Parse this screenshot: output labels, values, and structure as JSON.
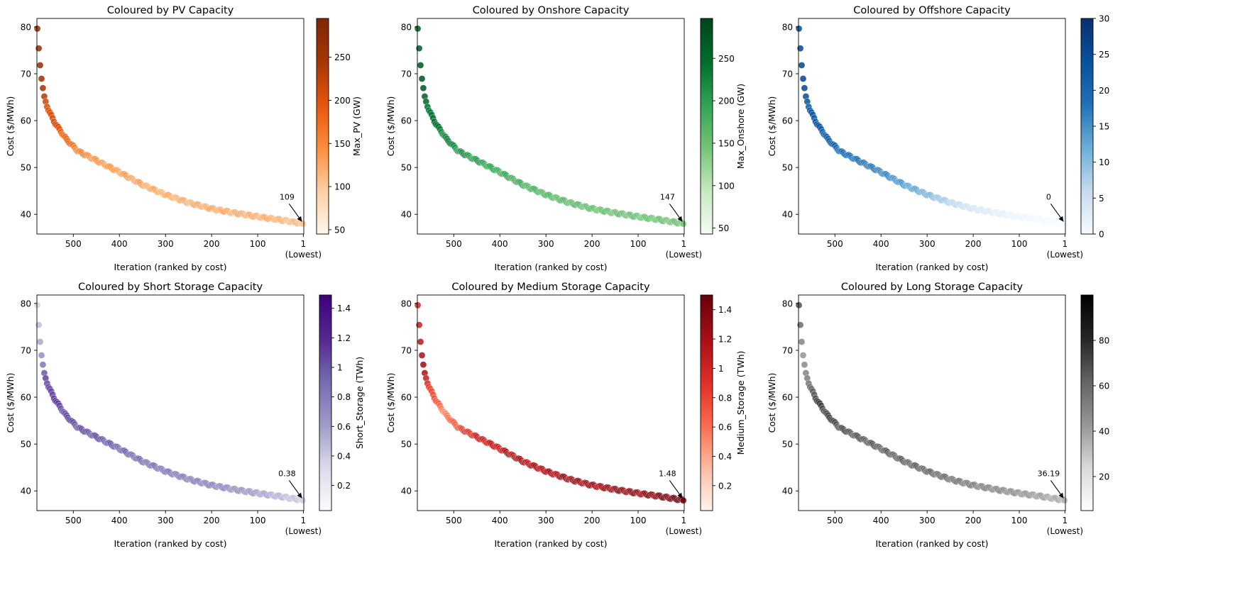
{
  "figure": {
    "xlabel": "Iteration (ranked by cost)",
    "ylabel": "Cost ($/MWh)",
    "x_tick_labels": [
      "500",
      "400",
      "300",
      "200",
      "100",
      "1"
    ],
    "lowest_label": "(Lowest)"
  },
  "chart_data": [
    {
      "type": "scatter",
      "title": "Coloured by PV Capacity",
      "xlabel": "Iteration (ranked by cost)",
      "ylabel": "Cost ($/MWh)",
      "colorbar_label": "Max_PV (GW)",
      "colormap": "Oranges",
      "color_stops": [
        "#fff5eb",
        "#fdd0a2",
        "#fd8d3c",
        "#e6550d",
        "#a63603",
        "#7f2704"
      ],
      "color_range": [
        45,
        295
      ],
      "colorbar_ticks": [
        50,
        100,
        150,
        200,
        250
      ],
      "x_ticks": [
        500,
        400,
        300,
        200,
        100,
        1
      ],
      "xlim": [
        579,
        0
      ],
      "y_ticks": [
        40,
        50,
        60,
        70,
        80
      ],
      "ylim": [
        35.8,
        81.8
      ],
      "annotation": {
        "text": "109",
        "x": 1,
        "y": 38.0
      },
      "cost_curve": [
        [
          1,
          38.0
        ],
        [
          50,
          38.8
        ],
        [
          100,
          39.5
        ],
        [
          150,
          40.3
        ],
        [
          200,
          41.2
        ],
        [
          250,
          42.5
        ],
        [
          300,
          44.2
        ],
        [
          350,
          46.3
        ],
        [
          400,
          49.0
        ],
        [
          450,
          51.5
        ],
        [
          490,
          53.5
        ],
        [
          515,
          56.0
        ],
        [
          540,
          59.5
        ],
        [
          555,
          62.5
        ],
        [
          563,
          65.0
        ],
        [
          568,
          68.0
        ],
        [
          572,
          72.0
        ],
        [
          575,
          75.5
        ],
        [
          577,
          78.0
        ],
        [
          578,
          79.5
        ]
      ],
      "color_curve": [
        [
          1,
          109
        ],
        [
          100,
          120
        ],
        [
          200,
          122
        ],
        [
          300,
          118
        ],
        [
          400,
          130
        ],
        [
          450,
          135
        ],
        [
          500,
          160
        ],
        [
          530,
          195
        ],
        [
          560,
          220
        ],
        [
          575,
          270
        ],
        [
          578,
          280
        ]
      ]
    },
    {
      "type": "scatter",
      "title": "Coloured by Onshore Capacity",
      "xlabel": "Iteration (ranked by cost)",
      "ylabel": "Cost ($/MWh)",
      "colorbar_label": "Max_Onshore (GW)",
      "colormap": "Greens",
      "color_stops": [
        "#f7fcf5",
        "#c7e9c0",
        "#74c476",
        "#31a354",
        "#006d2c",
        "#00441b"
      ],
      "color_range": [
        43,
        297
      ],
      "colorbar_ticks": [
        50,
        100,
        150,
        200,
        250
      ],
      "x_ticks": [
        500,
        400,
        300,
        200,
        100,
        1
      ],
      "xlim": [
        579,
        0
      ],
      "y_ticks": [
        40,
        50,
        60,
        70,
        80
      ],
      "ylim": [
        35.8,
        81.8
      ],
      "annotation": {
        "text": "147",
        "x": 1,
        "y": 38.0
      },
      "cost_curve": [
        [
          1,
          38.0
        ],
        [
          50,
          38.8
        ],
        [
          100,
          39.5
        ],
        [
          150,
          40.3
        ],
        [
          200,
          41.2
        ],
        [
          250,
          42.5
        ],
        [
          300,
          44.2
        ],
        [
          350,
          46.3
        ],
        [
          400,
          49.0
        ],
        [
          450,
          51.5
        ],
        [
          490,
          53.5
        ],
        [
          515,
          56.0
        ],
        [
          540,
          59.5
        ],
        [
          555,
          62.5
        ],
        [
          563,
          65.0
        ],
        [
          568,
          68.0
        ],
        [
          572,
          72.0
        ],
        [
          575,
          75.5
        ],
        [
          577,
          78.0
        ],
        [
          578,
          79.5
        ]
      ],
      "color_curve": [
        [
          1,
          147
        ],
        [
          100,
          150
        ],
        [
          200,
          155
        ],
        [
          300,
          165
        ],
        [
          400,
          185
        ],
        [
          450,
          200
        ],
        [
          500,
          215
        ],
        [
          530,
          230
        ],
        [
          560,
          260
        ],
        [
          578,
          270
        ]
      ]
    },
    {
      "type": "scatter",
      "title": "Coloured by Offshore Capacity",
      "xlabel": "Iteration (ranked by cost)",
      "ylabel": "Cost ($/MWh)",
      "colorbar_label": "",
      "colormap": "Blues",
      "color_stops": [
        "#f7fbff",
        "#c6dbef",
        "#6baed6",
        "#2171b5",
        "#08519c",
        "#08306b"
      ],
      "color_range": [
        0,
        30
      ],
      "colorbar_ticks": [
        0,
        5,
        10,
        15,
        20,
        25,
        30
      ],
      "x_ticks": [
        500,
        400,
        300,
        200,
        100,
        1
      ],
      "xlim": [
        579,
        0
      ],
      "y_ticks": [
        40,
        50,
        60,
        70,
        80
      ],
      "ylim": [
        35.8,
        81.8
      ],
      "annotation": {
        "text": "0",
        "x": 1,
        "y": 38.0
      },
      "cost_curve": [
        [
          1,
          38.0
        ],
        [
          50,
          38.8
        ],
        [
          100,
          39.5
        ],
        [
          150,
          40.3
        ],
        [
          200,
          41.2
        ],
        [
          250,
          42.5
        ],
        [
          300,
          44.2
        ],
        [
          350,
          46.3
        ],
        [
          400,
          49.0
        ],
        [
          450,
          51.5
        ],
        [
          490,
          53.5
        ],
        [
          515,
          56.0
        ],
        [
          540,
          59.5
        ],
        [
          555,
          62.5
        ],
        [
          563,
          65.0
        ],
        [
          568,
          68.0
        ],
        [
          572,
          72.0
        ],
        [
          575,
          75.5
        ],
        [
          577,
          78.0
        ],
        [
          578,
          79.5
        ]
      ],
      "color_curve": [
        [
          1,
          0
        ],
        [
          100,
          1
        ],
        [
          200,
          4
        ],
        [
          250,
          7
        ],
        [
          300,
          11
        ],
        [
          400,
          16
        ],
        [
          450,
          18
        ],
        [
          500,
          20
        ],
        [
          530,
          22
        ],
        [
          560,
          24
        ],
        [
          578,
          26
        ]
      ]
    },
    {
      "type": "scatter",
      "title": "Coloured by Short Storage Capacity",
      "xlabel": "Iteration (ranked by cost)",
      "ylabel": "Cost ($/MWh)",
      "colorbar_label": "Short_Storage (TWh)",
      "colormap": "Purples",
      "color_stops": [
        "#fcfbfd",
        "#dadaeb",
        "#9e9ac8",
        "#756bb1",
        "#54278f",
        "#3f007d"
      ],
      "color_range": [
        0.03,
        1.49
      ],
      "colorbar_ticks": [
        0.2,
        0.4,
        0.6,
        0.8,
        1.0,
        1.2,
        1.4
      ],
      "x_ticks": [
        500,
        400,
        300,
        200,
        100,
        1
      ],
      "xlim": [
        579,
        0
      ],
      "y_ticks": [
        40,
        50,
        60,
        70,
        80
      ],
      "ylim": [
        35.8,
        81.8
      ],
      "annotation": {
        "text": "0.38",
        "x": 1,
        "y": 38.0
      },
      "cost_curve": [
        [
          1,
          38.0
        ],
        [
          50,
          38.8
        ],
        [
          100,
          39.5
        ],
        [
          150,
          40.3
        ],
        [
          200,
          41.2
        ],
        [
          250,
          42.5
        ],
        [
          300,
          44.2
        ],
        [
          350,
          46.3
        ],
        [
          400,
          49.0
        ],
        [
          450,
          51.5
        ],
        [
          490,
          53.5
        ],
        [
          515,
          56.0
        ],
        [
          540,
          59.5
        ],
        [
          555,
          62.5
        ],
        [
          563,
          65.0
        ],
        [
          568,
          68.0
        ],
        [
          572,
          72.0
        ],
        [
          575,
          75.5
        ],
        [
          577,
          78.0
        ],
        [
          578,
          79.5
        ]
      ],
      "color_curve": [
        [
          1,
          0.38
        ],
        [
          100,
          0.6
        ],
        [
          200,
          0.75
        ],
        [
          300,
          0.8
        ],
        [
          400,
          0.9
        ],
        [
          450,
          1.0
        ],
        [
          500,
          1.0
        ],
        [
          530,
          1.05
        ],
        [
          560,
          1.1
        ],
        [
          570,
          0.6
        ],
        [
          578,
          0.35
        ]
      ]
    },
    {
      "type": "scatter",
      "title": "Coloured by Medium Storage Capacity",
      "xlabel": "Iteration (ranked by cost)",
      "ylabel": "Cost ($/MWh)",
      "colorbar_label": "Medium_Storage (TWh)",
      "colormap": "Reds",
      "color_stops": [
        "#fff5f0",
        "#fcbba1",
        "#fb6a4a",
        "#de2d26",
        "#a50f15",
        "#67000d"
      ],
      "color_range": [
        0.03,
        1.5
      ],
      "colorbar_ticks": [
        0.2,
        0.4,
        0.6,
        0.8,
        1.0,
        1.2,
        1.4
      ],
      "x_ticks": [
        500,
        400,
        300,
        200,
        100,
        1
      ],
      "xlim": [
        579,
        0
      ],
      "y_ticks": [
        40,
        50,
        60,
        70,
        80
      ],
      "ylim": [
        35.8,
        81.8
      ],
      "annotation": {
        "text": "1.48",
        "x": 1,
        "y": 38.0
      },
      "cost_curve": [
        [
          1,
          38.0
        ],
        [
          50,
          38.8
        ],
        [
          100,
          39.5
        ],
        [
          150,
          40.3
        ],
        [
          200,
          41.2
        ],
        [
          250,
          42.5
        ],
        [
          300,
          44.2
        ],
        [
          350,
          46.3
        ],
        [
          400,
          49.0
        ],
        [
          450,
          51.5
        ],
        [
          490,
          53.5
        ],
        [
          515,
          56.0
        ],
        [
          540,
          59.5
        ],
        [
          555,
          62.5
        ],
        [
          563,
          65.0
        ],
        [
          568,
          68.0
        ],
        [
          572,
          72.0
        ],
        [
          575,
          75.5
        ],
        [
          577,
          78.0
        ],
        [
          578,
          79.5
        ]
      ],
      "color_curve": [
        [
          1,
          1.48
        ],
        [
          100,
          1.3
        ],
        [
          200,
          1.25
        ],
        [
          300,
          1.2
        ],
        [
          400,
          1.1
        ],
        [
          450,
          1.0
        ],
        [
          490,
          0.7
        ],
        [
          520,
          0.5
        ],
        [
          550,
          0.8
        ],
        [
          565,
          1.2
        ],
        [
          578,
          1.0
        ]
      ]
    },
    {
      "type": "scatter",
      "title": "Coloured by Long Storage Capacity",
      "xlabel": "Iteration (ranked by cost)",
      "ylabel": "Cost ($/MWh)",
      "colorbar_label": "",
      "colormap": "Greys",
      "color_stops": [
        "#ffffff",
        "#d9d9d9",
        "#969696",
        "#636363",
        "#252525",
        "#000000"
      ],
      "color_range": [
        5,
        100
      ],
      "colorbar_ticks": [
        20,
        40,
        60,
        80
      ],
      "x_ticks": [
        500,
        400,
        300,
        200,
        100,
        1
      ],
      "xlim": [
        579,
        0
      ],
      "y_ticks": [
        40,
        50,
        60,
        70,
        80
      ],
      "ylim": [
        35.8,
        81.8
      ],
      "annotation": {
        "text": "36.19",
        "x": 1,
        "y": 38.0
      },
      "cost_curve": [
        [
          1,
          38.0
        ],
        [
          50,
          38.8
        ],
        [
          100,
          39.5
        ],
        [
          150,
          40.3
        ],
        [
          200,
          41.2
        ],
        [
          250,
          42.5
        ],
        [
          300,
          44.2
        ],
        [
          350,
          46.3
        ],
        [
          400,
          49.0
        ],
        [
          450,
          51.5
        ],
        [
          490,
          53.5
        ],
        [
          515,
          56.0
        ],
        [
          540,
          59.5
        ],
        [
          555,
          62.5
        ],
        [
          563,
          65.0
        ],
        [
          568,
          68.0
        ],
        [
          572,
          72.0
        ],
        [
          575,
          75.5
        ],
        [
          577,
          78.0
        ],
        [
          578,
          79.5
        ]
      ],
      "color_curve": [
        [
          1,
          36
        ],
        [
          100,
          45
        ],
        [
          200,
          52
        ],
        [
          300,
          60
        ],
        [
          400,
          62
        ],
        [
          450,
          65
        ],
        [
          500,
          68
        ],
        [
          530,
          72
        ],
        [
          555,
          60
        ],
        [
          570,
          40
        ],
        [
          578,
          70
        ]
      ]
    }
  ]
}
